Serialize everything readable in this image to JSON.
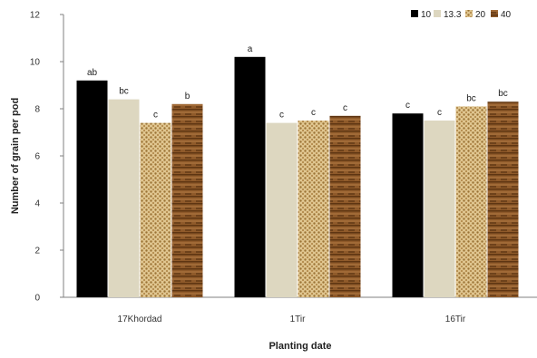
{
  "chart_data": {
    "type": "bar",
    "xlabel": "Planting date",
    "ylabel": "Number of grain per pod",
    "ylim": [
      0,
      12
    ],
    "yticks": [
      0,
      2,
      4,
      6,
      8,
      10,
      12
    ],
    "grid": false,
    "legend_position": "top-right",
    "categories": [
      "17Khordad",
      "1Tir",
      "16Tir"
    ],
    "series": [
      {
        "name": "10",
        "color": "#000000",
        "pattern": "solid",
        "values": [
          9.2,
          10.2,
          7.8
        ],
        "labels": [
          "ab",
          "a",
          "c"
        ]
      },
      {
        "name": "13.3",
        "color": "#ddd7c0",
        "pattern": "solid",
        "values": [
          8.4,
          7.4,
          7.5
        ],
        "labels": [
          "bc",
          "c",
          "c"
        ]
      },
      {
        "name": "20",
        "color": "#c8a468",
        "pattern": "dots",
        "values": [
          7.4,
          7.5,
          8.1
        ],
        "labels": [
          "c",
          "c",
          "bc"
        ]
      },
      {
        "name": "40",
        "color": "#8a5526",
        "pattern": "wood",
        "values": [
          8.2,
          7.7,
          8.3
        ],
        "labels": [
          "b",
          "c",
          "bc"
        ]
      }
    ]
  }
}
